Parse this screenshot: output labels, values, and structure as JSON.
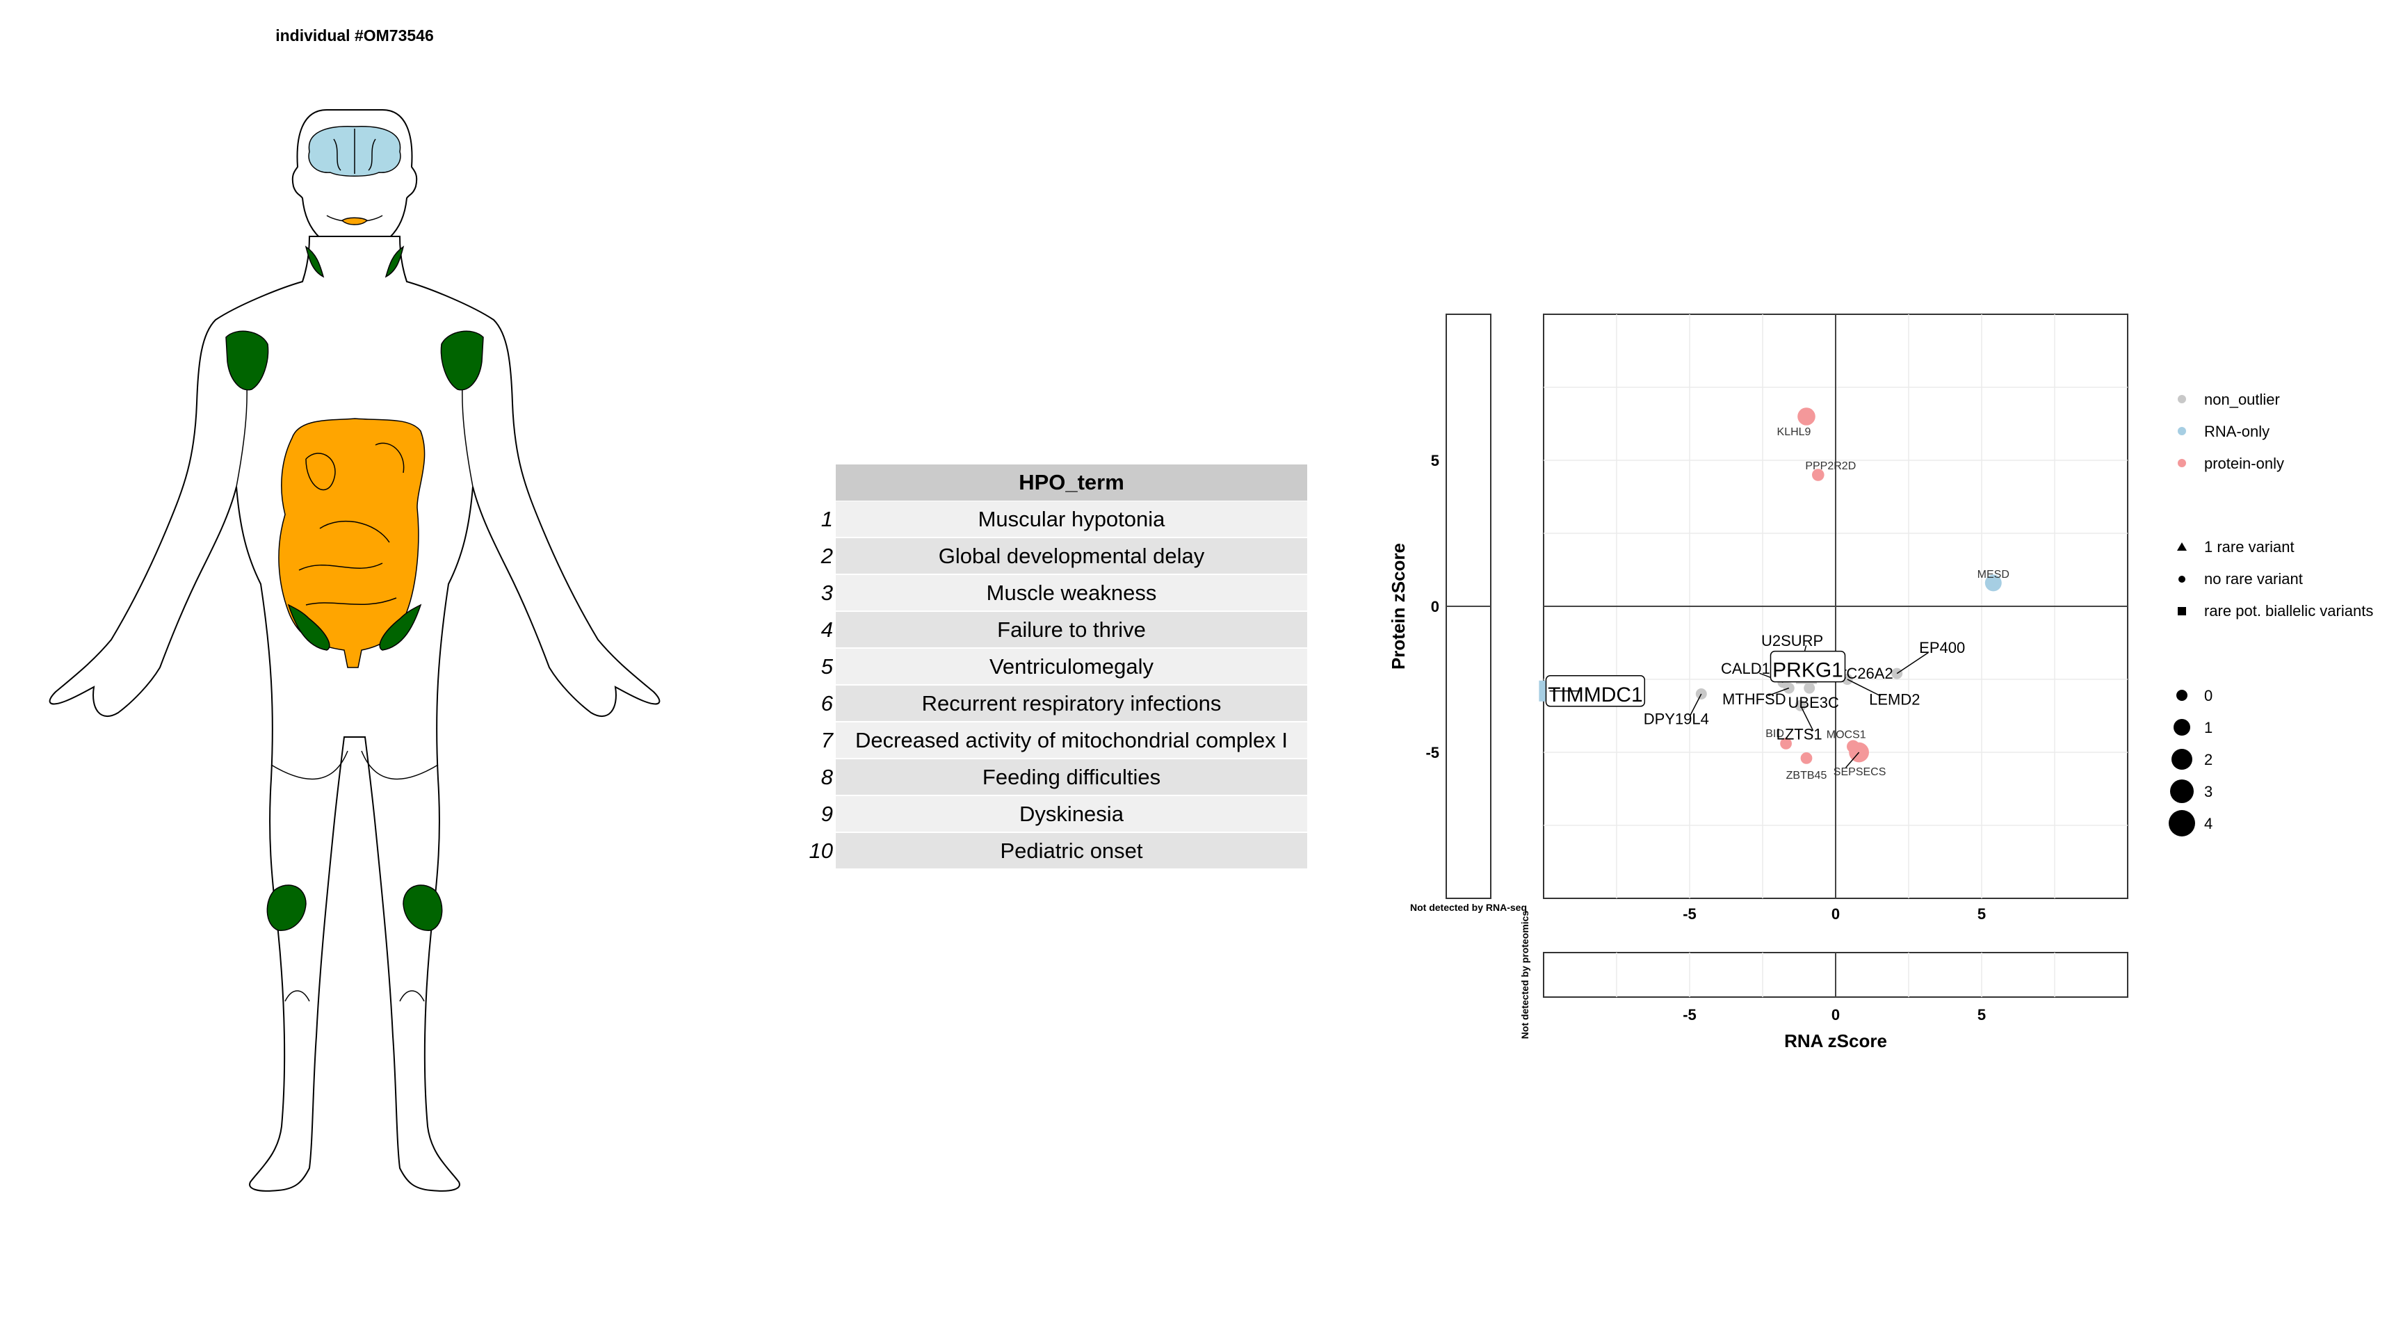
{
  "page": {
    "title": "individual #OM73546"
  },
  "body_map": {
    "highlighted_colors": {
      "brain": "#add8e6",
      "mouth": "#ffa500",
      "digestive": "#ffa500",
      "muscle": "#006400",
      "outline": "#000000"
    }
  },
  "hpo": {
    "header": "HPO_term",
    "rows": [
      {
        "n": "1",
        "term": "Muscular hypotonia"
      },
      {
        "n": "2",
        "term": "Global developmental delay"
      },
      {
        "n": "3",
        "term": "Muscle weakness"
      },
      {
        "n": "4",
        "term": "Failure to thrive"
      },
      {
        "n": "5",
        "term": "Ventriculomegaly"
      },
      {
        "n": "6",
        "term": "Recurrent respiratory infections"
      },
      {
        "n": "7",
        "term": "Decreased activity of mitochondrial complex I"
      },
      {
        "n": "8",
        "term": "Feeding difficulties"
      },
      {
        "n": "9",
        "term": "Dyskinesia"
      },
      {
        "n": "10",
        "term": "Pediatric onset"
      }
    ]
  },
  "chart_data": {
    "type": "scatter",
    "xlabel": "RNA zScore",
    "ylabel": "Protein zScore",
    "xlim": [
      -10,
      10
    ],
    "ylim": [
      -10,
      10
    ],
    "xticks": [
      -5,
      0,
      5
    ],
    "yticks": [
      -5,
      0,
      5
    ],
    "side_panel_label_rna": "Not detected by RNA-seq",
    "side_panel_label_prot": "Not detected by proteomics",
    "grid": true,
    "legend_position": "right",
    "legend_color": {
      "non_outlier": {
        "label": "non_outlier",
        "color": "#c8c8c8"
      },
      "RNA-only": {
        "label": "RNA-only",
        "color": "#a6cee3"
      },
      "protein-only": {
        "label": "protein-only",
        "color": "#f4989a"
      }
    },
    "legend_shape": [
      "1 rare variant",
      "no rare variant",
      "rare pot. biallelic variants"
    ],
    "legend_size": [
      "0",
      "1",
      "2",
      "3",
      "4"
    ],
    "points": [
      {
        "gene": "KLHL9",
        "x": -1.0,
        "y": 6.5,
        "group": "protein-only",
        "size": 2.2
      },
      {
        "gene": "PPP2R2D",
        "x": -0.6,
        "y": 4.5,
        "group": "protein-only",
        "size": 1.2
      },
      {
        "gene": "MESD",
        "x": 5.4,
        "y": 0.8,
        "group": "RNA-only",
        "size": 2.0
      },
      {
        "gene": "BID",
        "x": -1.7,
        "y": -4.7,
        "group": "protein-only",
        "size": 1.1
      },
      {
        "gene": "ZBTB45",
        "x": -1.0,
        "y": -5.2,
        "group": "protein-only",
        "size": 1.1
      },
      {
        "gene": "MOCS1",
        "x": 0.6,
        "y": -4.8,
        "group": "protein-only",
        "size": 1.3
      },
      {
        "gene": "SEPSECS",
        "x": 0.8,
        "y": -5.0,
        "group": "protein-only",
        "size": 2.6
      },
      {
        "gene": "U2SURP",
        "x": -1.2,
        "y": -2.1,
        "group": "non_outlier",
        "size": 1.0
      },
      {
        "gene": "CALD1",
        "x": -1.8,
        "y": -2.6,
        "group": "non_outlier",
        "size": 1.0
      },
      {
        "gene": "MTHFSD",
        "x": -1.6,
        "y": -2.8,
        "group": "non_outlier",
        "size": 1.0
      },
      {
        "gene": "UBE3C",
        "x": -0.9,
        "y": -2.8,
        "group": "non_outlier",
        "size": 1.0
      },
      {
        "gene": "SLC26A2",
        "x": -0.2,
        "y": -2.3,
        "group": "non_outlier",
        "size": 1.0
      },
      {
        "gene": "LEMD2",
        "x": 0.4,
        "y": -2.5,
        "group": "non_outlier",
        "size": 1.0
      },
      {
        "gene": "EP400",
        "x": 2.1,
        "y": -2.3,
        "group": "non_outlier",
        "size": 1.0
      },
      {
        "gene": "LZTS1",
        "x": -1.2,
        "y": -3.4,
        "group": "non_outlier",
        "size": 1.0
      },
      {
        "gene": "DPY19L4",
        "x": -4.6,
        "y": -3.0,
        "group": "non_outlier",
        "size": 1.0
      },
      {
        "gene": "PRKG1",
        "x": -1.0,
        "y": -2.3,
        "group": "non_outlier",
        "size": 1.0,
        "shape": "square"
      },
      {
        "gene": "TIMMDC1",
        "x": -9.8,
        "y": -2.9,
        "group": "RNA-only",
        "size": 1.0,
        "shape": "square"
      }
    ]
  }
}
